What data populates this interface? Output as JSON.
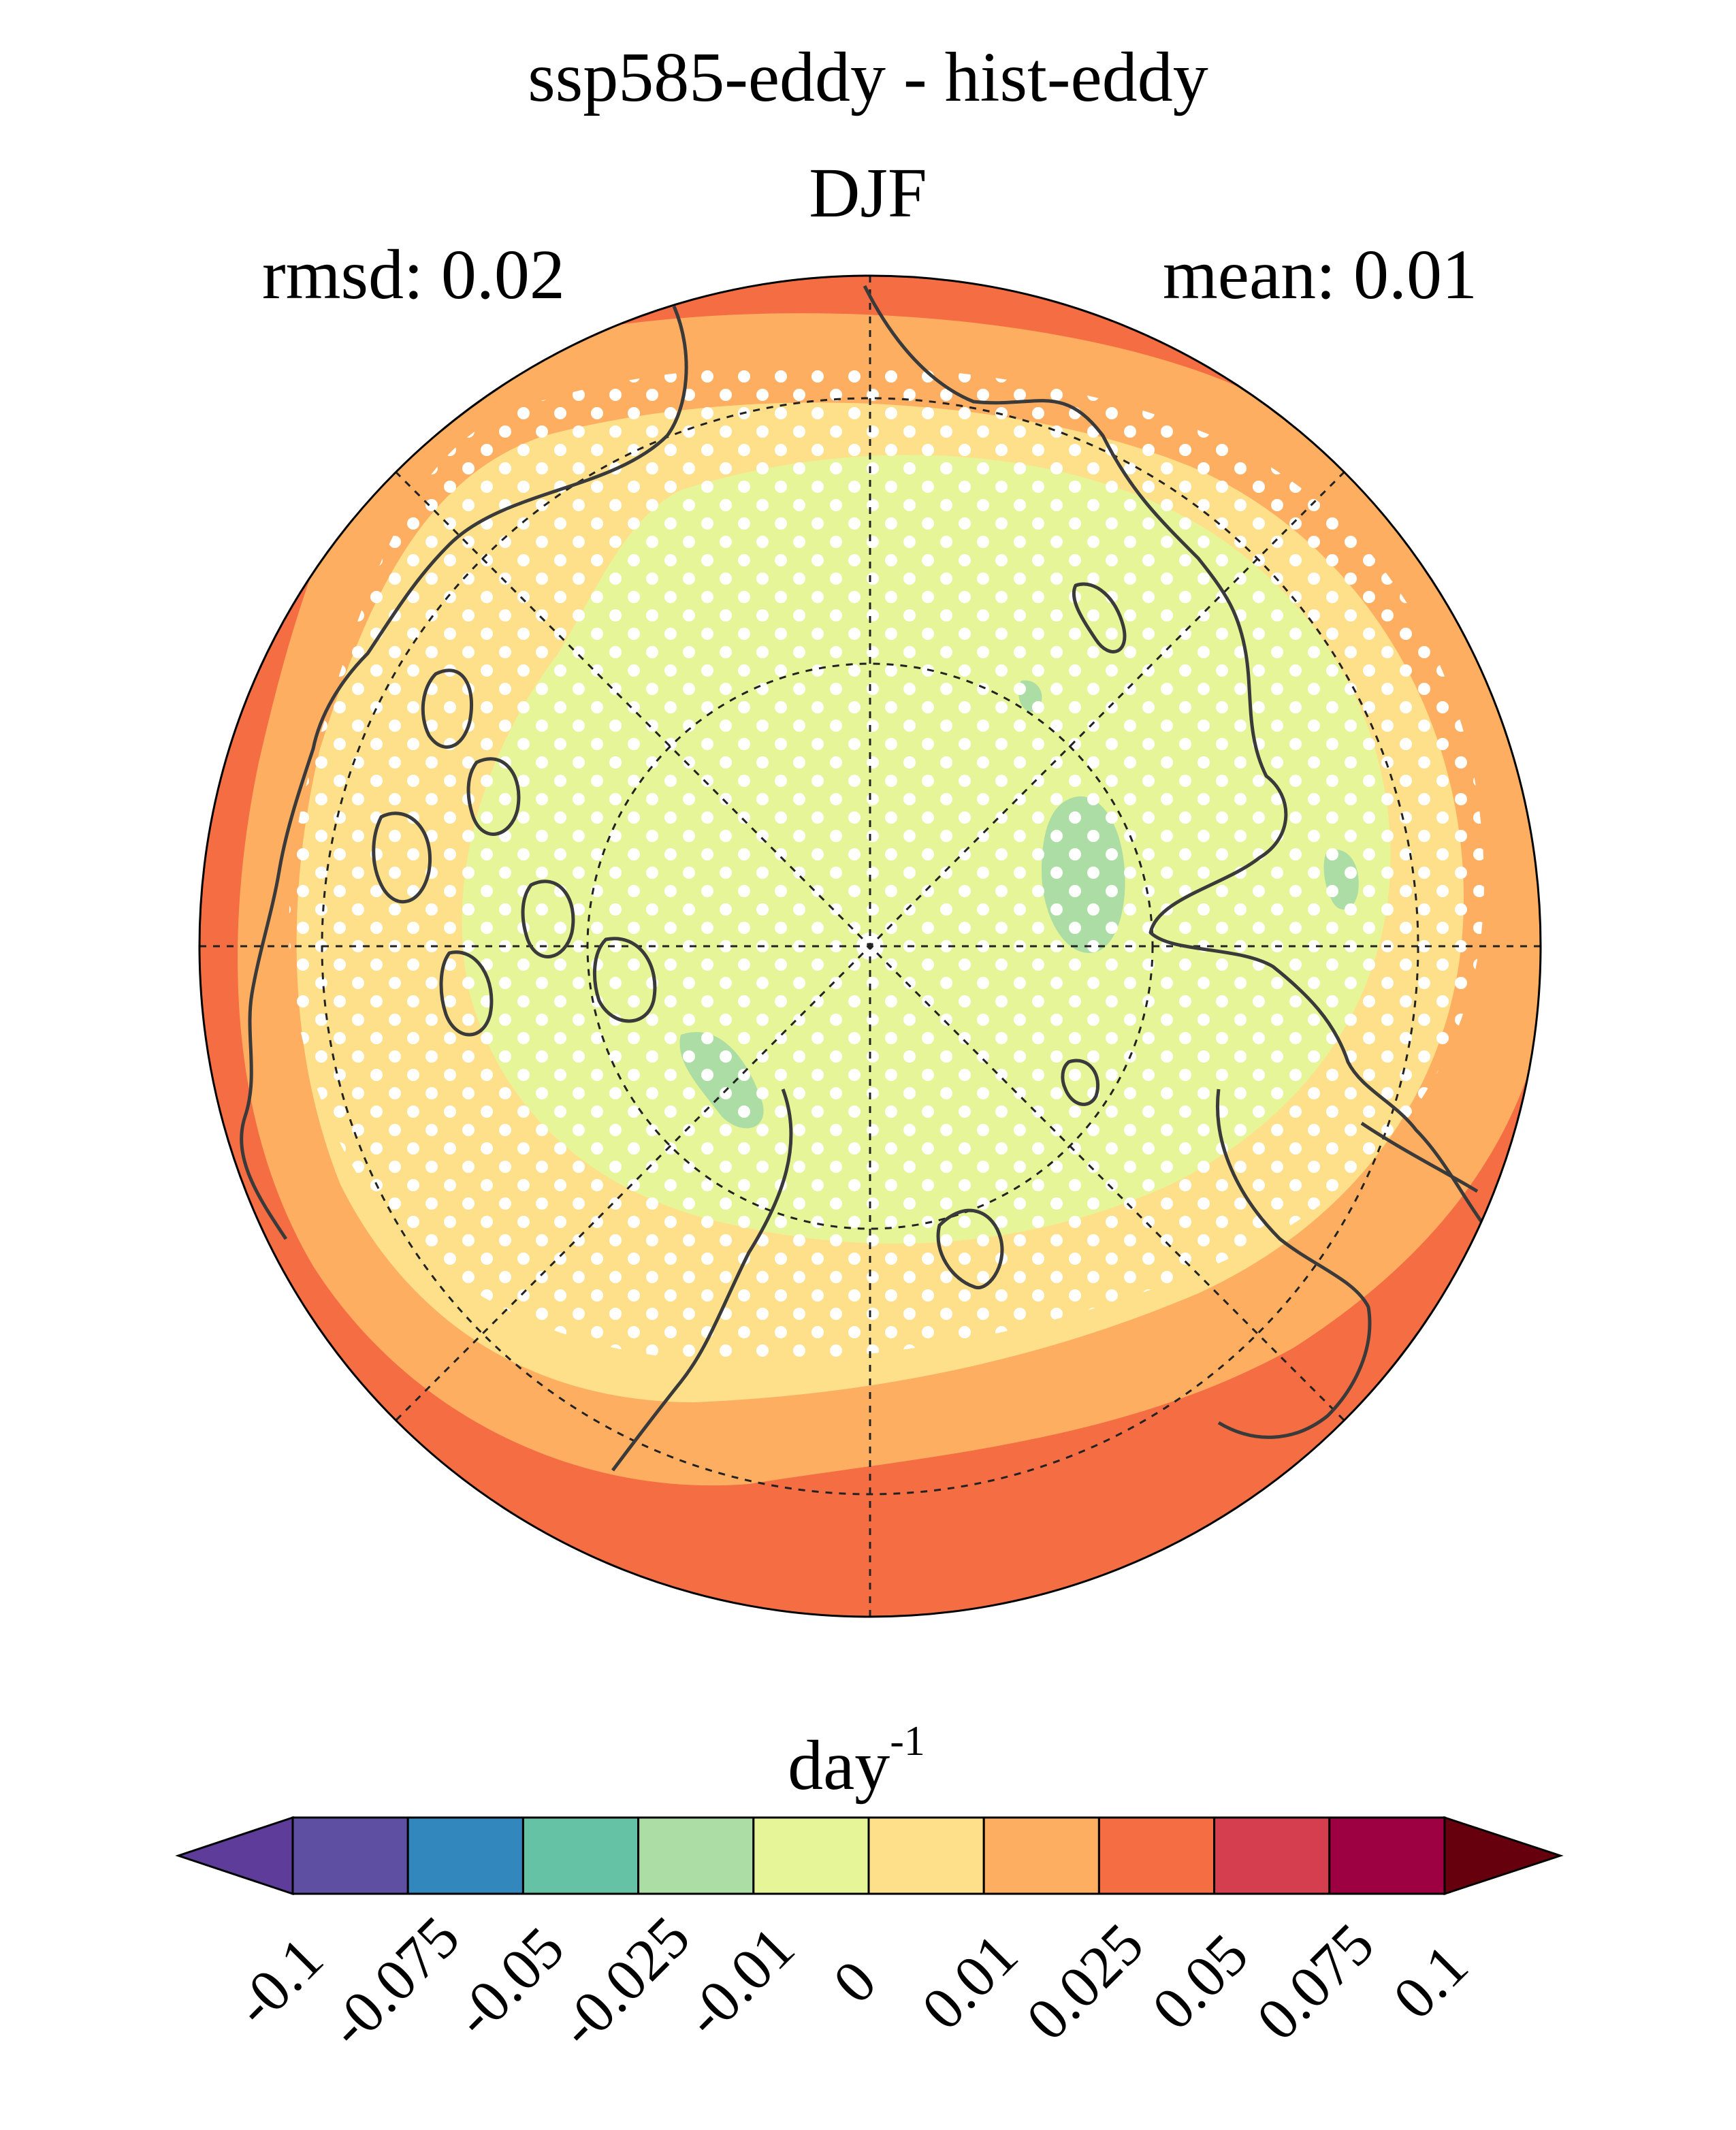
{
  "title": "ssp585-eddy - hist-eddy",
  "subtitle": "DJF",
  "rmsd": "rmsd: 0.02",
  "mean": "mean: 0.01",
  "colorbar": {
    "unit_base": "day",
    "unit_exp": "-1",
    "ticks": [
      "-0.1",
      "-0.075",
      "-0.05",
      "-0.025",
      "-0.01",
      "0",
      "0.01",
      "0.025",
      "0.05",
      "0.075",
      "0.1"
    ],
    "colors": [
      "#5e3c99",
      "#5e4fa2",
      "#3288bd",
      "#66c2a5",
      "#abdda4",
      "#e6f598",
      "#fee08b",
      "#fdae61",
      "#f46d43",
      "#d53e4f",
      "#9e0142",
      "#67000d"
    ]
  },
  "map": {
    "projection": "north polar stereographic",
    "colors": {
      "outer": "#f46d43",
      "ring": "#fdae61",
      "mid": "#fee08b",
      "inner": "#e6f598",
      "negative": "#abdda4",
      "coast": "#3a3a3a"
    },
    "stippling": true
  }
}
